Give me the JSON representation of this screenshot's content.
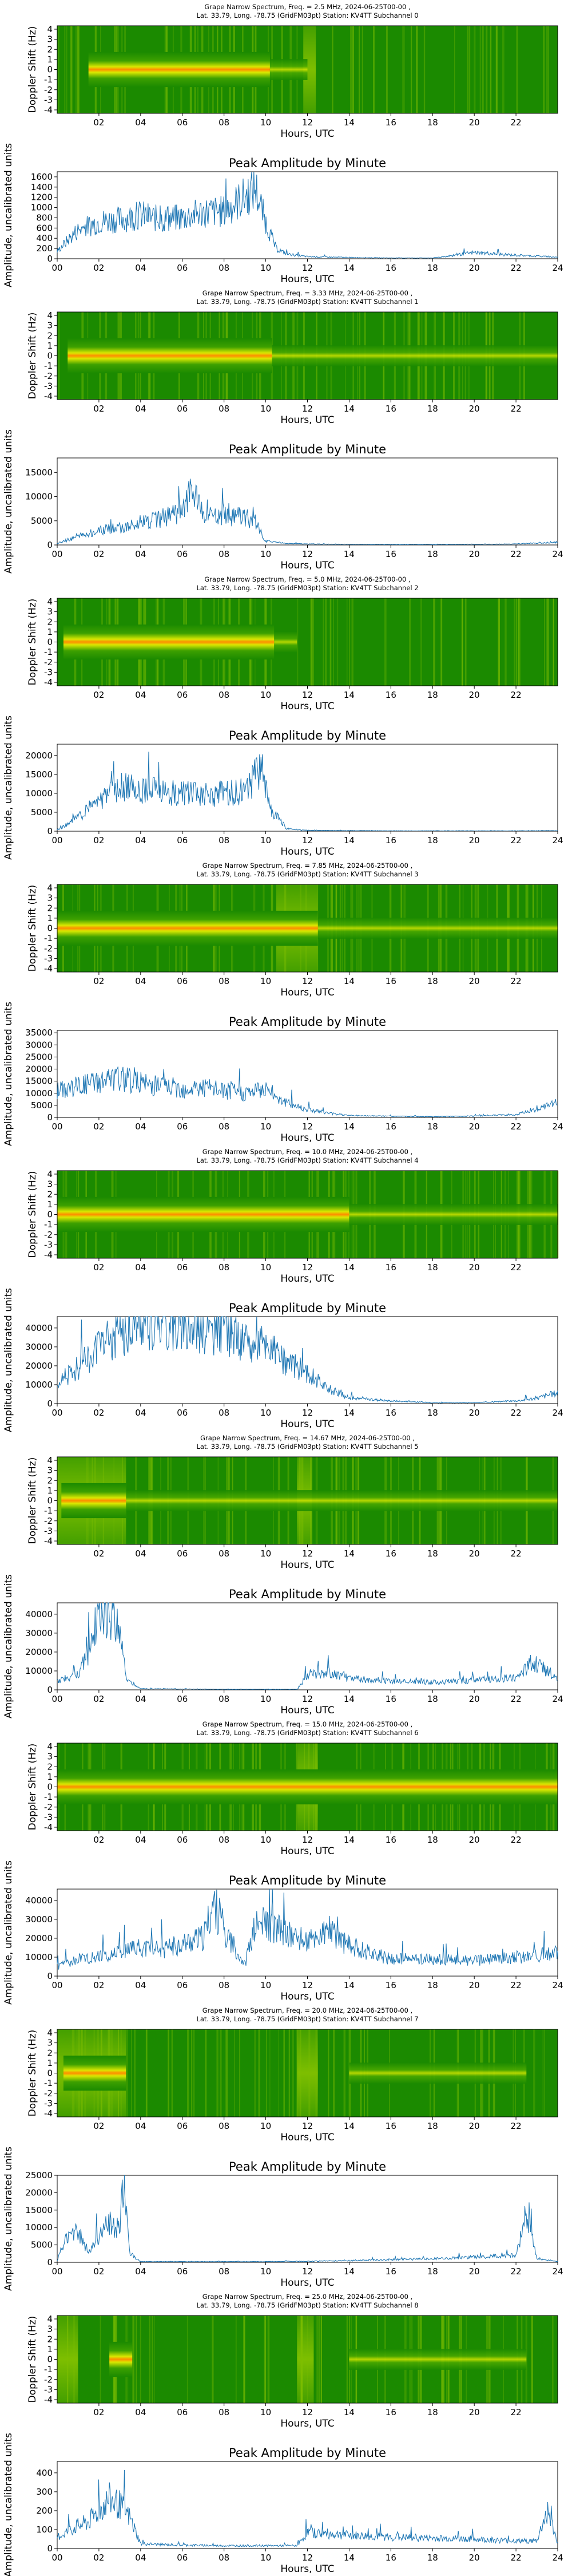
{
  "figure": {
    "spectrogram_ylabel": "Doppler Shift (Hz)",
    "spectrogram_xlabel": "Hours, UTC",
    "spectrogram_xticks": [
      "02",
      "04",
      "06",
      "08",
      "10",
      "12",
      "14",
      "16",
      "18",
      "20",
      "22"
    ],
    "spectrogram_yticks": [
      "-4",
      "-3",
      "-2",
      "-1",
      "0",
      "1",
      "2",
      "3",
      "4"
    ],
    "amplitude_title": "Peak Amplitude by Minute",
    "amplitude_ylabel": "Amplitude, uncalibrated units",
    "amplitude_xlabel": "Hours, UTC",
    "amplitude_xticks": [
      "00",
      "02",
      "04",
      "06",
      "08",
      "10",
      "12",
      "14",
      "16",
      "18",
      "20",
      "22",
      "24"
    ],
    "colors": {
      "line": "#1f77b4",
      "spec_bg": "#1b8a00",
      "spec_mid": "#d9e800",
      "spec_hot": "#ff3a00"
    }
  },
  "panels": [
    {
      "title_line1": "Grape Narrow Spectrum, Freq. = 2.5 MHz, 2024-06-25T00-00 ,",
      "title_line2": "Lat. 33.79, Long. -78.75 (GridFM03pt) Station: KV4TT Subchannel 0",
      "yticks": [
        "0",
        "200",
        "400",
        "600",
        "800",
        "1000",
        "1200",
        "1400",
        "1600"
      ],
      "ylim": [
        0,
        1700
      ]
    },
    {
      "title_line1": "Grape Narrow Spectrum, Freq. = 3.33 MHz, 2024-06-25T00-00 ,",
      "title_line2": "Lat. 33.79, Long. -78.75 (GridFM03pt) Station: KV4TT Subchannel 1",
      "yticks": [
        "0",
        "5000",
        "10000",
        "15000"
      ],
      "ylim": [
        0,
        18000
      ]
    },
    {
      "title_line1": "Grape Narrow Spectrum, Freq. = 5.0 MHz, 2024-06-25T00-00 ,",
      "title_line2": "Lat. 33.79, Long. -78.75 (GridFM03pt) Station: KV4TT Subchannel 2",
      "yticks": [
        "0",
        "5000",
        "10000",
        "15000",
        "20000"
      ],
      "ylim": [
        0,
        23000
      ]
    },
    {
      "title_line1": "Grape Narrow Spectrum, Freq. = 7.85 MHz, 2024-06-25T00-00 ,",
      "title_line2": "Lat. 33.79, Long. -78.75 (GridFM03pt) Station: KV4TT Subchannel 3",
      "yticks": [
        "0",
        "5000",
        "10000",
        "15000",
        "20000",
        "25000",
        "30000",
        "35000"
      ],
      "ylim": [
        0,
        36000
      ]
    },
    {
      "title_line1": "Grape Narrow Spectrum, Freq. = 10.0 MHz, 2024-06-25T00-00 ,",
      "title_line2": "Lat. 33.79, Long. -78.75 (GridFM03pt) Station: KV4TT Subchannel 4",
      "yticks": [
        "0",
        "10000",
        "20000",
        "30000",
        "40000"
      ],
      "ylim": [
        0,
        46000
      ]
    },
    {
      "title_line1": "Grape Narrow Spectrum, Freq. = 14.67 MHz, 2024-06-25T00-00 ,",
      "title_line2": "Lat. 33.79, Long. -78.75 (GridFM03pt) Station: KV4TT Subchannel 5",
      "yticks": [
        "0",
        "10000",
        "20000",
        "30000",
        "40000"
      ],
      "ylim": [
        0,
        46000
      ]
    },
    {
      "title_line1": "Grape Narrow Spectrum, Freq. = 15.0 MHz, 2024-06-25T00-00 ,",
      "title_line2": "Lat. 33.79, Long. -78.75 (GridFM03pt) Station: KV4TT Subchannel 6",
      "yticks": [
        "0",
        "10000",
        "20000",
        "30000",
        "40000"
      ],
      "ylim": [
        0,
        46000
      ]
    },
    {
      "title_line1": "Grape Narrow Spectrum, Freq. = 20.0 MHz, 2024-06-25T00-00 ,",
      "title_line2": "Lat. 33.79, Long. -78.75 (GridFM03pt) Station: KV4TT Subchannel 7",
      "yticks": [
        "0",
        "5000",
        "10000",
        "15000",
        "20000",
        "25000"
      ],
      "ylim": [
        0,
        25000
      ]
    },
    {
      "title_line1": "Grape Narrow Spectrum, Freq. = 25.0 MHz, 2024-06-25T00-00 ,",
      "title_line2": "Lat. 33.79, Long. -78.75 (GridFM03pt) Station: KV4TT Subchannel 8",
      "yticks": [
        "0",
        "100",
        "200",
        "300",
        "400"
      ],
      "ylim": [
        0,
        460
      ]
    }
  ],
  "chart_data": [
    {
      "type": "line",
      "title": "Peak Amplitude by Minute",
      "xlabel": "Hours, UTC",
      "ylabel": "Amplitude, uncalibrated units",
      "xlim": [
        0,
        24
      ],
      "ylim": [
        0,
        1700
      ],
      "x": [
        0,
        1,
        2,
        3,
        4,
        5,
        6,
        7,
        8,
        9,
        9.5,
        10,
        10.5,
        11,
        12,
        14,
        16,
        18,
        20,
        22,
        24
      ],
      "values": [
        150,
        560,
        720,
        760,
        850,
        760,
        800,
        900,
        920,
        1200,
        1380,
        700,
        200,
        90,
        40,
        25,
        15,
        15,
        120,
        70,
        30
      ]
    },
    {
      "type": "line",
      "title": "Peak Amplitude by Minute",
      "xlabel": "Hours, UTC",
      "ylabel": "Amplitude, uncalibrated units",
      "xlim": [
        0,
        24
      ],
      "ylim": [
        0,
        18000
      ],
      "x": [
        0,
        1,
        2,
        3,
        4,
        5,
        6,
        6.5,
        7,
        8,
        9,
        9.5,
        10,
        11,
        12,
        14,
        16,
        18,
        20,
        22,
        24
      ],
      "values": [
        300,
        1800,
        3000,
        3600,
        4600,
        5500,
        7000,
        12000,
        6000,
        6000,
        5800,
        4800,
        800,
        300,
        200,
        150,
        100,
        100,
        150,
        200,
        600
      ]
    },
    {
      "type": "line",
      "title": "Peak Amplitude by Minute",
      "xlabel": "Hours, UTC",
      "ylabel": "Amplitude, uncalibrated units",
      "xlim": [
        0,
        24
      ],
      "ylim": [
        0,
        23000
      ],
      "x": [
        0,
        1,
        2,
        3,
        4,
        5,
        6,
        7,
        8,
        9,
        9.8,
        10.2,
        11,
        12,
        14,
        16,
        18,
        20,
        22,
        24
      ],
      "values": [
        300,
        3500,
        8500,
        11500,
        11000,
        10500,
        10000,
        9500,
        10000,
        10500,
        17000,
        6000,
        700,
        200,
        150,
        100,
        100,
        100,
        100,
        150
      ]
    },
    {
      "type": "line",
      "title": "Peak Amplitude by Minute",
      "xlabel": "Hours, UTC",
      "ylabel": "Amplitude, uncalibrated units",
      "xlim": [
        0,
        24
      ],
      "ylim": [
        0,
        36000
      ],
      "x": [
        0,
        1,
        2,
        3,
        4,
        5,
        6,
        7,
        8,
        9,
        10,
        11,
        12,
        13,
        14,
        16,
        18,
        20,
        22,
        23,
        24
      ],
      "values": [
        11000,
        13000,
        15000,
        16000,
        14000,
        13000,
        12000,
        12500,
        11000,
        10000,
        12000,
        6000,
        3500,
        1800,
        800,
        500,
        300,
        600,
        1200,
        3000,
        6500
      ]
    },
    {
      "type": "line",
      "title": "Peak Amplitude by Minute",
      "xlabel": "Hours, UTC",
      "ylabel": "Amplitude, uncalibrated units",
      "xlim": [
        0,
        24
      ],
      "ylim": [
        0,
        46000
      ],
      "x": [
        0,
        1,
        2,
        3,
        4,
        5,
        6,
        7,
        8,
        9,
        10,
        11,
        12,
        13,
        14,
        16,
        18,
        20,
        22,
        23,
        24
      ],
      "values": [
        11000,
        19000,
        30000,
        37000,
        42000,
        43000,
        42000,
        40000,
        38000,
        33000,
        30000,
        22000,
        16000,
        8000,
        3000,
        1500,
        500,
        500,
        1500,
        3000,
        6000
      ]
    },
    {
      "type": "line",
      "title": "Peak Amplitude by Minute",
      "xlabel": "Hours, UTC",
      "ylabel": "Amplitude, uncalibrated units",
      "xlim": [
        0,
        24
      ],
      "ylim": [
        0,
        46000
      ],
      "x": [
        0,
        1,
        1.5,
        2,
        2.5,
        3,
        3.3,
        4,
        6,
        8,
        10,
        11.5,
        12,
        13,
        14,
        16,
        18,
        20,
        22,
        22.8,
        24
      ],
      "values": [
        5000,
        8000,
        20000,
        40000,
        42000,
        30000,
        6000,
        600,
        400,
        300,
        300,
        300,
        8000,
        9000,
        6000,
        4500,
        4000,
        5000,
        6500,
        15000,
        6000
      ]
    },
    {
      "type": "line",
      "title": "Peak Amplitude by Minute",
      "xlabel": "Hours, UTC",
      "ylabel": "Amplitude, uncalibrated units",
      "xlim": [
        0,
        24
      ],
      "ylim": [
        0,
        46000
      ],
      "x": [
        0,
        1,
        2,
        3,
        4,
        5,
        6,
        7,
        7.5,
        8,
        9,
        9.5,
        10,
        11,
        12,
        13,
        14,
        16,
        18,
        20,
        22,
        24
      ],
      "values": [
        5000,
        9000,
        10000,
        12000,
        15000,
        14000,
        17000,
        20000,
        38000,
        25000,
        6000,
        26000,
        28000,
        22000,
        18000,
        23000,
        16000,
        9000,
        9000,
        8000,
        10000,
        12000
      ]
    },
    {
      "type": "line",
      "title": "Peak Amplitude by Minute",
      "xlabel": "Hours, UTC",
      "ylabel": "Amplitude, uncalibrated units",
      "xlim": [
        0,
        24
      ],
      "ylim": [
        0,
        25000
      ],
      "x": [
        0,
        0.5,
        1,
        1.5,
        2,
        2.5,
        3,
        3.2,
        3.5,
        4,
        6,
        8,
        10,
        12,
        14,
        16,
        18,
        20,
        22,
        22.5,
        23,
        24
      ],
      "values": [
        500,
        8000,
        9000,
        3000,
        8000,
        11000,
        9000,
        24000,
        2500,
        200,
        200,
        200,
        200,
        300,
        500,
        800,
        1000,
        1500,
        2000,
        14000,
        1000,
        300
      ]
    },
    {
      "type": "line",
      "title": "Peak Amplitude by Minute",
      "xlabel": "Hours, UTC",
      "ylabel": "Amplitude, uncalibrated units",
      "xlim": [
        0,
        24
      ],
      "ylim": [
        0,
        460
      ],
      "x": [
        0,
        1,
        1.5,
        2,
        2.5,
        3,
        3.5,
        4,
        6,
        8,
        10,
        11.5,
        12,
        14,
        16,
        18,
        20,
        22,
        23,
        23.5,
        24
      ],
      "values": [
        60,
        120,
        140,
        200,
        260,
        230,
        160,
        25,
        18,
        15,
        15,
        15,
        85,
        70,
        60,
        55,
        50,
        40,
        40,
        200,
        30
      ]
    }
  ]
}
